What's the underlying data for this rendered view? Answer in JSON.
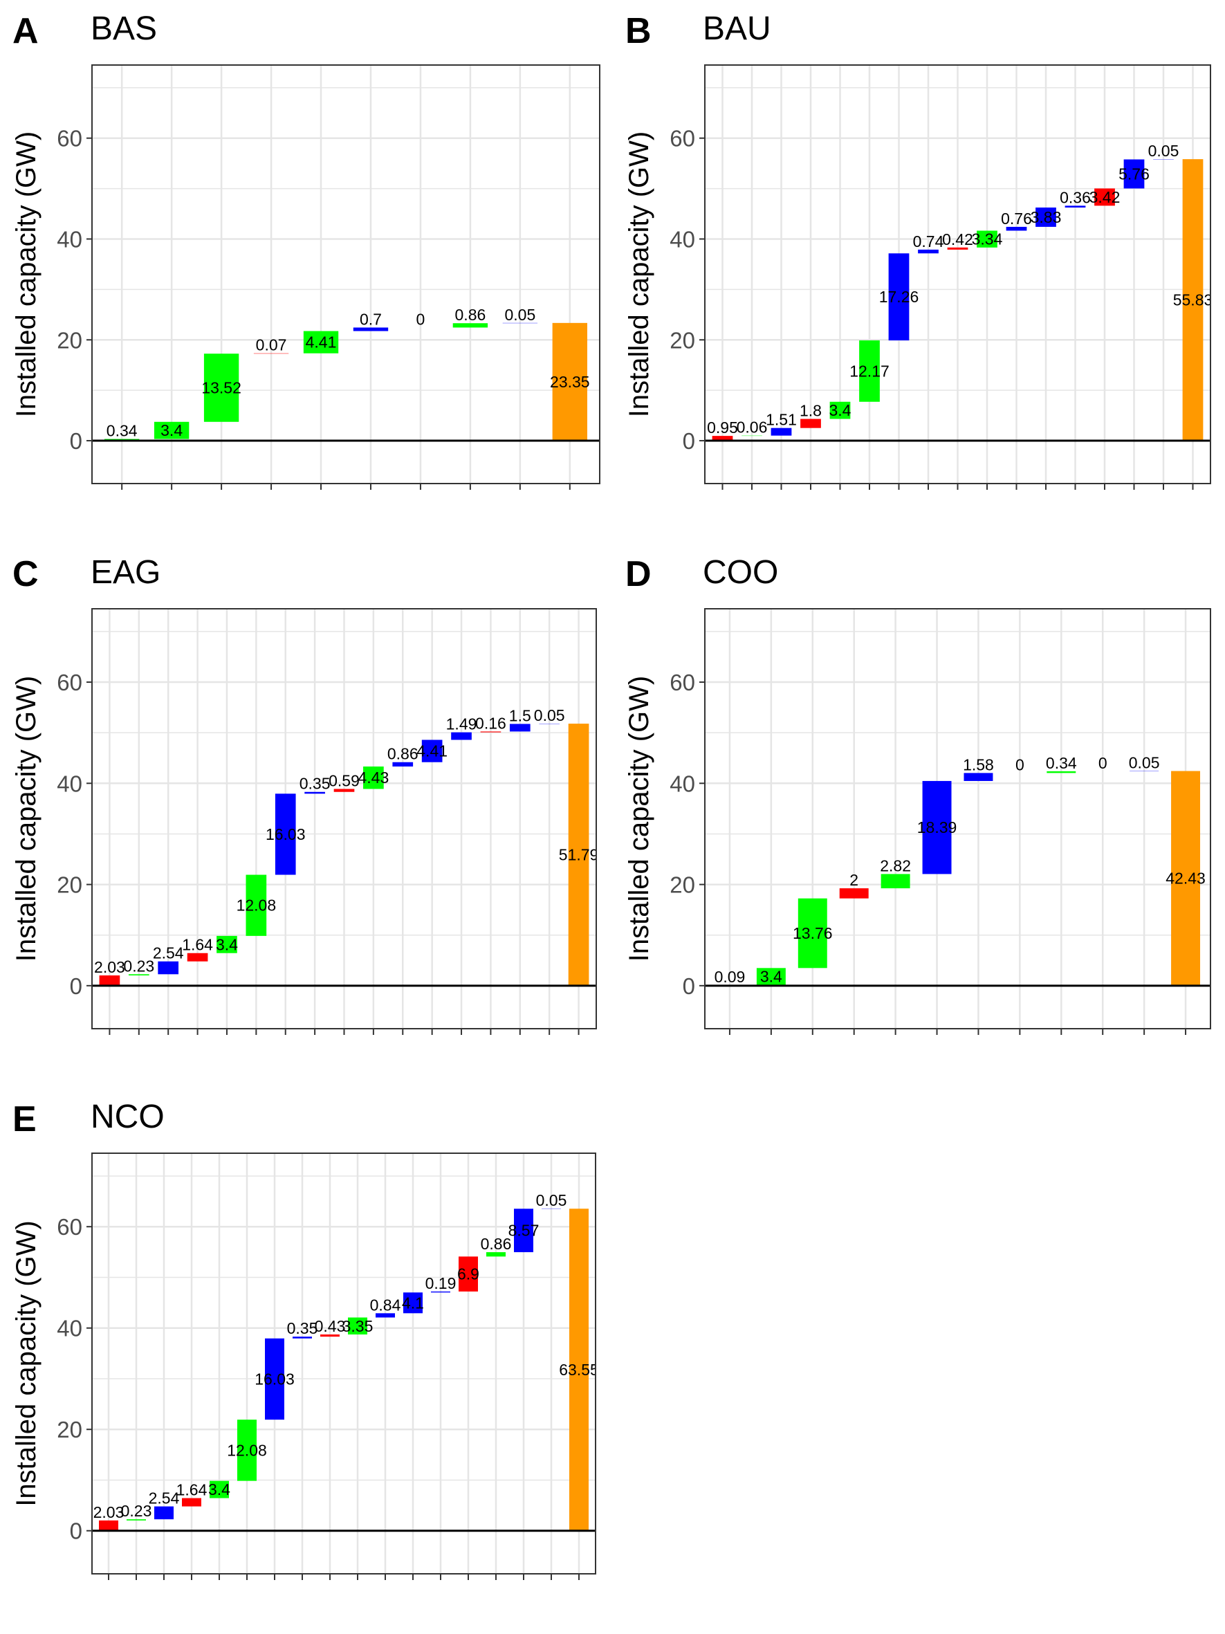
{
  "colors": {
    "red": "#ff0000",
    "green": "#00ff00",
    "blue": "#0000ff",
    "total": "#ff9900",
    "grid": "#e5e5e5",
    "panel_border": "#333333",
    "zero_line": "#000000"
  },
  "chart_data": [
    {
      "type": "waterfall",
      "panel_letter": "A",
      "title": "BAS",
      "ylabel": "Installed capacity (GW)",
      "ylim": [
        -8.5,
        74.5
      ],
      "yticks": [
        0,
        20,
        40,
        60
      ],
      "ytick_labels": [
        "0",
        "20",
        "40",
        "60"
      ],
      "steps": [
        {
          "value": 0.34,
          "label": "0.34",
          "color": "green"
        },
        {
          "value": 3.4,
          "label": "3.4",
          "color": "green"
        },
        {
          "value": 13.52,
          "label": "13.52",
          "color": "green"
        },
        {
          "value": 0.07,
          "label": "0.07",
          "color": "red"
        },
        {
          "value": 4.41,
          "label": "4.41",
          "color": "green"
        },
        {
          "value": 0.7,
          "label": "0.7",
          "color": "blue"
        },
        {
          "value": 0,
          "label": "0",
          "color": "green"
        },
        {
          "value": 0.86,
          "label": "0.86",
          "color": "green"
        },
        {
          "value": 0.05,
          "label": "0.05",
          "color": "blue"
        }
      ],
      "total": {
        "value": 23.35,
        "label": "23.35"
      }
    },
    {
      "type": "waterfall",
      "panel_letter": "B",
      "title": "BAU",
      "ylabel": "Installed capacity (GW)",
      "ylim": [
        -8.5,
        74.5
      ],
      "yticks": [
        0,
        20,
        40,
        60
      ],
      "ytick_labels": [
        "0",
        "20",
        "40",
        "60"
      ],
      "steps": [
        {
          "value": 0.95,
          "label": "0.95",
          "color": "red"
        },
        {
          "value": 0.06,
          "label": "0.06",
          "color": "green"
        },
        {
          "value": 1.51,
          "label": "1.51",
          "color": "blue"
        },
        {
          "value": 1.8,
          "label": "1.8",
          "color": "red"
        },
        {
          "value": 3.4,
          "label": "3.4",
          "color": "green"
        },
        {
          "value": 12.17,
          "label": "12.17",
          "color": "green"
        },
        {
          "value": 17.26,
          "label": "17.26",
          "color": "blue"
        },
        {
          "value": 0.74,
          "label": "0.74",
          "color": "blue"
        },
        {
          "value": 0.42,
          "label": "0.42",
          "color": "red"
        },
        {
          "value": 3.34,
          "label": "3.34",
          "color": "green"
        },
        {
          "value": 0.76,
          "label": "0.76",
          "color": "blue"
        },
        {
          "value": 3.83,
          "label": "3.83",
          "color": "blue"
        },
        {
          "value": 0.36,
          "label": "0.36",
          "color": "blue"
        },
        {
          "value": 3.42,
          "label": "3.42",
          "color": "red"
        },
        {
          "value": 5.76,
          "label": "5.76",
          "color": "blue"
        },
        {
          "value": 0.05,
          "label": "0.05",
          "color": "blue"
        }
      ],
      "total": {
        "value": 55.83,
        "label": "55.83"
      }
    },
    {
      "type": "waterfall",
      "panel_letter": "C",
      "title": "EAG",
      "ylabel": "Installed capacity (GW)",
      "ylim": [
        -8.5,
        74.5
      ],
      "yticks": [
        0,
        20,
        40,
        60
      ],
      "ytick_labels": [
        "0",
        "20",
        "40",
        "60"
      ],
      "steps": [
        {
          "value": 2.03,
          "label": "2.03",
          "color": "red"
        },
        {
          "value": 0.23,
          "label": "0.23",
          "color": "green"
        },
        {
          "value": 2.54,
          "label": "2.54",
          "color": "blue"
        },
        {
          "value": 1.64,
          "label": "1.64",
          "color": "red"
        },
        {
          "value": 3.4,
          "label": "3.4",
          "color": "green"
        },
        {
          "value": 12.08,
          "label": "12.08",
          "color": "green"
        },
        {
          "value": 16.03,
          "label": "16.03",
          "color": "blue"
        },
        {
          "value": 0.35,
          "label": "0.35",
          "color": "blue"
        },
        {
          "value": 0.59,
          "label": "0.59",
          "color": "red"
        },
        {
          "value": 4.43,
          "label": "4.43",
          "color": "green"
        },
        {
          "value": 0.86,
          "label": "0.86",
          "color": "blue"
        },
        {
          "value": 4.41,
          "label": "4.41",
          "color": "blue"
        },
        {
          "value": 1.49,
          "label": "1.49",
          "color": "blue"
        },
        {
          "value": 0.16,
          "label": "0.16",
          "color": "red"
        },
        {
          "value": 1.5,
          "label": "1.5",
          "color": "blue"
        },
        {
          "value": 0.05,
          "label": "0.05",
          "color": "blue"
        }
      ],
      "total": {
        "value": 51.79,
        "label": "51.79"
      }
    },
    {
      "type": "waterfall",
      "panel_letter": "D",
      "title": "COO",
      "ylabel": "Installed capacity (GW)",
      "ylim": [
        -8.5,
        74.5
      ],
      "yticks": [
        0,
        20,
        40,
        60
      ],
      "ytick_labels": [
        "0",
        "20",
        "40",
        "60"
      ],
      "steps": [
        {
          "value": 0.09,
          "label": "0.09",
          "color": "green"
        },
        {
          "value": 3.4,
          "label": "3.4",
          "color": "green"
        },
        {
          "value": 13.76,
          "label": "13.76",
          "color": "green"
        },
        {
          "value": 2,
          "label": "2",
          "color": "red"
        },
        {
          "value": 2.82,
          "label": "2.82",
          "color": "green"
        },
        {
          "value": 18.39,
          "label": "18.39",
          "color": "blue"
        },
        {
          "value": 1.58,
          "label": "1.58",
          "color": "blue"
        },
        {
          "value": 0,
          "label": "0",
          "color": "green"
        },
        {
          "value": 0.34,
          "label": "0.34",
          "color": "green"
        },
        {
          "value": 0,
          "label": "0",
          "color": "green"
        },
        {
          "value": 0.05,
          "label": "0.05",
          "color": "blue"
        }
      ],
      "total": {
        "value": 42.43,
        "label": "42.43"
      }
    },
    {
      "type": "waterfall",
      "panel_letter": "E",
      "title": "NCO",
      "ylabel": "Installed capacity (GW)",
      "ylim": [
        -8.5,
        74.5
      ],
      "yticks": [
        0,
        20,
        40,
        60
      ],
      "ytick_labels": [
        "0",
        "20",
        "40",
        "60"
      ],
      "steps": [
        {
          "value": 2.03,
          "label": "2.03",
          "color": "red"
        },
        {
          "value": 0.23,
          "label": "0.23",
          "color": "green"
        },
        {
          "value": 2.54,
          "label": "2.54",
          "color": "blue"
        },
        {
          "value": 1.64,
          "label": "1.64",
          "color": "red"
        },
        {
          "value": 3.4,
          "label": "3.4",
          "color": "green"
        },
        {
          "value": 12.08,
          "label": "12.08",
          "color": "green"
        },
        {
          "value": 16.03,
          "label": "16.03",
          "color": "blue"
        },
        {
          "value": 0.35,
          "label": "0.35",
          "color": "blue"
        },
        {
          "value": 0.43,
          "label": "0.43",
          "color": "red"
        },
        {
          "value": 3.35,
          "label": "3.35",
          "color": "green"
        },
        {
          "value": 0.84,
          "label": "0.84",
          "color": "blue"
        },
        {
          "value": 4.1,
          "label": "4.1",
          "color": "blue"
        },
        {
          "value": 0.19,
          "label": "0.19",
          "color": "blue"
        },
        {
          "value": 6.9,
          "label": "6.9",
          "color": "red"
        },
        {
          "value": 0.86,
          "label": "0.86",
          "color": "green"
        },
        {
          "value": 8.57,
          "label": "8.57",
          "color": "blue"
        },
        {
          "value": 0.05,
          "label": "0.05",
          "color": "blue"
        }
      ],
      "total": {
        "value": 63.55,
        "label": "63.55"
      }
    }
  ]
}
